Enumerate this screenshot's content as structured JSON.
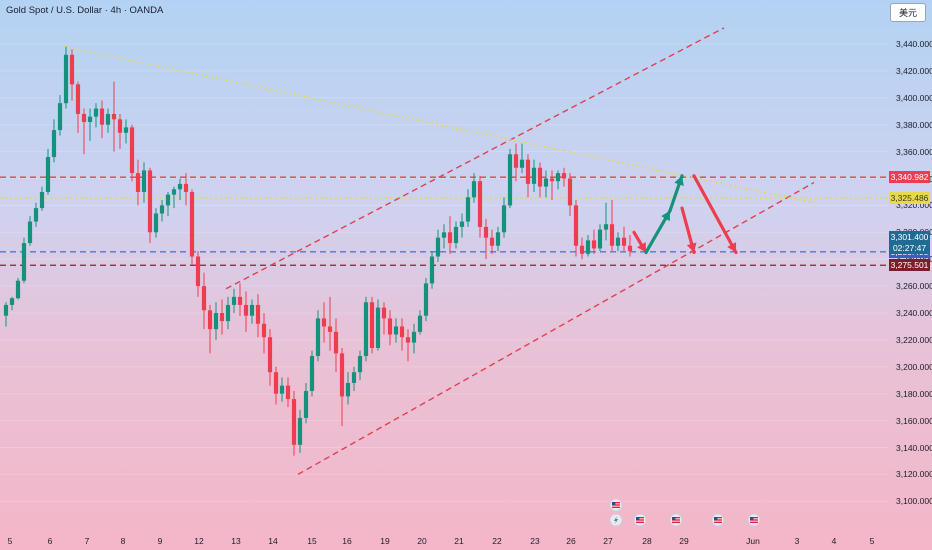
{
  "header": {
    "title": "Gold Spot / U.S. Dollar · 4h · OANDA"
  },
  "currency_button": {
    "label": "美元"
  },
  "timer": {
    "label": "02:27:47"
  },
  "colors": {
    "bull": "#16917c",
    "bear": "#ee3d4f",
    "resistance": "#e23f4f",
    "support": "#e23f4f",
    "dashed_yellow": "#e7d84c",
    "blue_dashed": "#5a78cc",
    "dark_red": "#8a2230",
    "green_arrow": "#16917c",
    "red_arrow": "#ee3d4f"
  },
  "chart_data": {
    "type": "candlestick",
    "title": "Gold Spot / U.S. Dollar · 4h · OANDA",
    "y_axis": {
      "min": 3100,
      "max": 3440,
      "ticks": [
        "3,440.000",
        "3,420.000",
        "3,400.000",
        "3,380.000",
        "3,360.000",
        "3,340.000",
        "3,320.000",
        "3,300.000",
        "3,280.000",
        "3,260.000",
        "3,240.000",
        "3,220.000",
        "3,200.000",
        "3,180.000",
        "3,160.000",
        "3,140.000",
        "3,120.000",
        "3,100.000"
      ]
    },
    "x_axis": {
      "ticks": [
        "5",
        "6",
        "7",
        "8",
        "9",
        "12",
        "13",
        "14",
        "15",
        "16",
        "19",
        "20",
        "21",
        "22",
        "23",
        "26",
        "27",
        "28",
        "29",
        "Jun",
        "3",
        "4",
        "5"
      ]
    },
    "price_labels": [
      {
        "value": 3340.982,
        "text": "3,340.982",
        "color": "#ee3d4f"
      },
      {
        "value": 3325.486,
        "text": "3,325.486",
        "color": "#e7d84c"
      },
      {
        "value": 3301.4,
        "text": "3,301.400",
        "color": "#1f6b94"
      },
      {
        "value": 3285.498,
        "text": "3,285.498",
        "color": "#3f5cc4"
      },
      {
        "value": 3275.501,
        "text": "3,275.501",
        "color": "#7a1f2a"
      }
    ],
    "horizontal_lines": [
      {
        "value": 3340.982,
        "style": "dashed",
        "color": "#e23f4f"
      },
      {
        "value": 3325.486,
        "style": "dotted",
        "color": "#e7d84c"
      },
      {
        "value": 3285.498,
        "style": "dashed",
        "color": "#5a78cc"
      },
      {
        "value": 3275.501,
        "style": "dashed",
        "color": "#8a2230"
      }
    ],
    "trendlines": [
      {
        "name": "upper channel",
        "style": "dashed",
        "color": "#e23f4f",
        "from": {
          "t": 37,
          "p": 3258
        },
        "to": {
          "t": 120,
          "p": 3452
        }
      },
      {
        "name": "lower channel",
        "style": "dashed",
        "color": "#e23f4f",
        "from": {
          "t": 49,
          "p": 3120
        },
        "to": {
          "t": 135,
          "p": 3337
        }
      },
      {
        "name": "falling trendline",
        "style": "dotted",
        "color": "#e7d84c",
        "from": {
          "t": 10,
          "p": 3438
        },
        "to": {
          "t": 135,
          "p": 3322
        }
      }
    ],
    "projection_arrows": [
      {
        "color": "#ee3d4f",
        "points": [
          {
            "t": 105,
            "p": 3300
          },
          {
            "t": 107,
            "p": 3285
          }
        ]
      },
      {
        "color": "#16917c",
        "points": [
          {
            "t": 107,
            "p": 3285
          },
          {
            "t": 111,
            "p": 3316
          }
        ]
      },
      {
        "color": "#16917c",
        "points": [
          {
            "t": 111,
            "p": 3316
          },
          {
            "t": 113,
            "p": 3342
          }
        ]
      },
      {
        "color": "#ee3d4f",
        "points": [
          {
            "t": 113,
            "p": 3318
          },
          {
            "t": 115,
            "p": 3285
          }
        ]
      },
      {
        "color": "#ee3d4f",
        "points": [
          {
            "t": 115,
            "p": 3342
          },
          {
            "t": 122,
            "p": 3285
          }
        ]
      }
    ],
    "candles": [
      {
        "o": 3238,
        "h": 3248,
        "c": 3246,
        "l": 3230
      },
      {
        "o": 3246,
        "h": 3252,
        "c": 3251,
        "l": 3242
      },
      {
        "o": 3251,
        "h": 3266,
        "c": 3264,
        "l": 3250
      },
      {
        "o": 3264,
        "h": 3296,
        "c": 3292,
        "l": 3262
      },
      {
        "o": 3292,
        "h": 3312,
        "c": 3308,
        "l": 3290
      },
      {
        "o": 3308,
        "h": 3322,
        "c": 3318,
        "l": 3304
      },
      {
        "o": 3318,
        "h": 3334,
        "c": 3330,
        "l": 3316
      },
      {
        "o": 3330,
        "h": 3362,
        "c": 3356,
        "l": 3328
      },
      {
        "o": 3356,
        "h": 3384,
        "c": 3376,
        "l": 3352
      },
      {
        "o": 3376,
        "h": 3402,
        "c": 3396,
        "l": 3372
      },
      {
        "o": 3396,
        "h": 3438,
        "c": 3432,
        "l": 3392
      },
      {
        "o": 3432,
        "h": 3436,
        "c": 3410,
        "l": 3398
      },
      {
        "o": 3410,
        "h": 3412,
        "c": 3388,
        "l": 3374
      },
      {
        "o": 3388,
        "h": 3392,
        "c": 3382,
        "l": 3358
      },
      {
        "o": 3382,
        "h": 3392,
        "c": 3386,
        "l": 3368
      },
      {
        "o": 3386,
        "h": 3396,
        "c": 3392,
        "l": 3378
      },
      {
        "o": 3392,
        "h": 3398,
        "c": 3380,
        "l": 3370
      },
      {
        "o": 3380,
        "h": 3392,
        "c": 3388,
        "l": 3374
      },
      {
        "o": 3388,
        "h": 3412,
        "c": 3384,
        "l": 3360
      },
      {
        "o": 3384,
        "h": 3388,
        "c": 3374,
        "l": 3362
      },
      {
        "o": 3374,
        "h": 3384,
        "c": 3378,
        "l": 3366
      },
      {
        "o": 3378,
        "h": 3380,
        "c": 3344,
        "l": 3338
      },
      {
        "o": 3344,
        "h": 3354,
        "c": 3330,
        "l": 3320
      },
      {
        "o": 3330,
        "h": 3352,
        "c": 3346,
        "l": 3322
      },
      {
        "o": 3346,
        "h": 3348,
        "c": 3300,
        "l": 3292
      },
      {
        "o": 3300,
        "h": 3318,
        "c": 3314,
        "l": 3296
      },
      {
        "o": 3314,
        "h": 3324,
        "c": 3320,
        "l": 3308
      },
      {
        "o": 3320,
        "h": 3330,
        "c": 3328,
        "l": 3312
      },
      {
        "o": 3328,
        "h": 3334,
        "c": 3332,
        "l": 3318
      },
      {
        "o": 3332,
        "h": 3340,
        "c": 3336,
        "l": 3324
      },
      {
        "o": 3336,
        "h": 3344,
        "c": 3330,
        "l": 3320
      },
      {
        "o": 3330,
        "h": 3332,
        "c": 3282,
        "l": 3276
      },
      {
        "o": 3282,
        "h": 3286,
        "c": 3260,
        "l": 3252
      },
      {
        "o": 3260,
        "h": 3270,
        "c": 3242,
        "l": 3228
      },
      {
        "o": 3242,
        "h": 3246,
        "c": 3228,
        "l": 3210
      },
      {
        "o": 3228,
        "h": 3248,
        "c": 3240,
        "l": 3220
      },
      {
        "o": 3240,
        "h": 3250,
        "c": 3234,
        "l": 3224
      },
      {
        "o": 3234,
        "h": 3252,
        "c": 3246,
        "l": 3228
      },
      {
        "o": 3246,
        "h": 3258,
        "c": 3252,
        "l": 3240
      },
      {
        "o": 3252,
        "h": 3262,
        "c": 3246,
        "l": 3238
      },
      {
        "o": 3246,
        "h": 3256,
        "c": 3238,
        "l": 3226
      },
      {
        "o": 3238,
        "h": 3250,
        "c": 3246,
        "l": 3232
      },
      {
        "o": 3246,
        "h": 3254,
        "c": 3232,
        "l": 3222
      },
      {
        "o": 3232,
        "h": 3240,
        "c": 3222,
        "l": 3210
      },
      {
        "o": 3222,
        "h": 3228,
        "c": 3196,
        "l": 3186
      },
      {
        "o": 3196,
        "h": 3200,
        "c": 3180,
        "l": 3172
      },
      {
        "o": 3180,
        "h": 3192,
        "c": 3186,
        "l": 3174
      },
      {
        "o": 3186,
        "h": 3192,
        "c": 3176,
        "l": 3170
      },
      {
        "o": 3176,
        "h": 3182,
        "c": 3142,
        "l": 3134
      },
      {
        "o": 3142,
        "h": 3168,
        "c": 3162,
        "l": 3136
      },
      {
        "o": 3162,
        "h": 3188,
        "c": 3182,
        "l": 3158
      },
      {
        "o": 3182,
        "h": 3212,
        "c": 3208,
        "l": 3178
      },
      {
        "o": 3208,
        "h": 3242,
        "c": 3236,
        "l": 3204
      },
      {
        "o": 3236,
        "h": 3248,
        "c": 3230,
        "l": 3218
      },
      {
        "o": 3230,
        "h": 3252,
        "c": 3226,
        "l": 3212
      },
      {
        "o": 3226,
        "h": 3236,
        "c": 3210,
        "l": 3196
      },
      {
        "o": 3210,
        "h": 3214,
        "c": 3178,
        "l": 3156
      },
      {
        "o": 3178,
        "h": 3196,
        "c": 3188,
        "l": 3172
      },
      {
        "o": 3188,
        "h": 3200,
        "c": 3196,
        "l": 3182
      },
      {
        "o": 3196,
        "h": 3212,
        "c": 3208,
        "l": 3190
      },
      {
        "o": 3208,
        "h": 3252,
        "c": 3248,
        "l": 3204
      },
      {
        "o": 3248,
        "h": 3252,
        "c": 3214,
        "l": 3210
      },
      {
        "o": 3214,
        "h": 3250,
        "c": 3244,
        "l": 3212
      },
      {
        "o": 3244,
        "h": 3248,
        "c": 3236,
        "l": 3224
      },
      {
        "o": 3236,
        "h": 3242,
        "c": 3224,
        "l": 3216
      },
      {
        "o": 3224,
        "h": 3236,
        "c": 3230,
        "l": 3218
      },
      {
        "o": 3230,
        "h": 3236,
        "c": 3222,
        "l": 3212
      },
      {
        "o": 3222,
        "h": 3228,
        "c": 3218,
        "l": 3204
      },
      {
        "o": 3218,
        "h": 3232,
        "c": 3226,
        "l": 3210
      },
      {
        "o": 3226,
        "h": 3242,
        "c": 3238,
        "l": 3224
      },
      {
        "o": 3238,
        "h": 3266,
        "c": 3262,
        "l": 3234
      },
      {
        "o": 3262,
        "h": 3286,
        "c": 3282,
        "l": 3258
      },
      {
        "o": 3282,
        "h": 3302,
        "c": 3296,
        "l": 3278
      },
      {
        "o": 3296,
        "h": 3306,
        "c": 3300,
        "l": 3288
      },
      {
        "o": 3300,
        "h": 3312,
        "c": 3292,
        "l": 3284
      },
      {
        "o": 3292,
        "h": 3308,
        "c": 3304,
        "l": 3288
      },
      {
        "o": 3304,
        "h": 3314,
        "c": 3308,
        "l": 3296
      },
      {
        "o": 3308,
        "h": 3332,
        "c": 3326,
        "l": 3304
      },
      {
        "o": 3326,
        "h": 3344,
        "c": 3338,
        "l": 3322
      },
      {
        "o": 3338,
        "h": 3342,
        "c": 3304,
        "l": 3296
      },
      {
        "o": 3304,
        "h": 3310,
        "c": 3296,
        "l": 3280
      },
      {
        "o": 3296,
        "h": 3302,
        "c": 3290,
        "l": 3284
      },
      {
        "o": 3290,
        "h": 3304,
        "c": 3300,
        "l": 3286
      },
      {
        "o": 3300,
        "h": 3326,
        "c": 3320,
        "l": 3296
      },
      {
        "o": 3320,
        "h": 3362,
        "c": 3358,
        "l": 3318
      },
      {
        "o": 3358,
        "h": 3366,
        "c": 3348,
        "l": 3338
      },
      {
        "o": 3348,
        "h": 3366,
        "c": 3354,
        "l": 3344
      },
      {
        "o": 3354,
        "h": 3358,
        "c": 3336,
        "l": 3326
      },
      {
        "o": 3336,
        "h": 3354,
        "c": 3348,
        "l": 3330
      },
      {
        "o": 3348,
        "h": 3352,
        "c": 3334,
        "l": 3326
      },
      {
        "o": 3334,
        "h": 3346,
        "c": 3340,
        "l": 3326
      },
      {
        "o": 3340,
        "h": 3346,
        "c": 3338,
        "l": 3324
      },
      {
        "o": 3338,
        "h": 3346,
        "c": 3344,
        "l": 3332
      },
      {
        "o": 3344,
        "h": 3348,
        "c": 3340,
        "l": 3334
      },
      {
        "o": 3340,
        "h": 3344,
        "c": 3320,
        "l": 3312
      },
      {
        "o": 3320,
        "h": 3324,
        "c": 3290,
        "l": 3282
      },
      {
        "o": 3290,
        "h": 3296,
        "c": 3284,
        "l": 3280
      },
      {
        "o": 3284,
        "h": 3298,
        "c": 3294,
        "l": 3282
      },
      {
        "o": 3294,
        "h": 3302,
        "c": 3288,
        "l": 3284
      },
      {
        "o": 3288,
        "h": 3306,
        "c": 3302,
        "l": 3286
      },
      {
        "o": 3302,
        "h": 3322,
        "c": 3306,
        "l": 3294
      },
      {
        "o": 3306,
        "h": 3324,
        "c": 3290,
        "l": 3286
      },
      {
        "o": 3290,
        "h": 3300,
        "c": 3296,
        "l": 3286
      },
      {
        "o": 3296,
        "h": 3304,
        "c": 3290,
        "l": 3286
      },
      {
        "o": 3290,
        "h": 3298,
        "c": 3286,
        "l": 3282
      }
    ]
  },
  "event_markers": [
    {
      "name": "lightning-event",
      "t": 102
    },
    {
      "name": "us-flag-event",
      "t": 102
    },
    {
      "name": "us-flag-event",
      "t": 106
    },
    {
      "name": "us-flag-event",
      "t": 112
    },
    {
      "name": "us-flag-event",
      "t": 119
    },
    {
      "name": "us-flag-event",
      "t": 125
    }
  ]
}
